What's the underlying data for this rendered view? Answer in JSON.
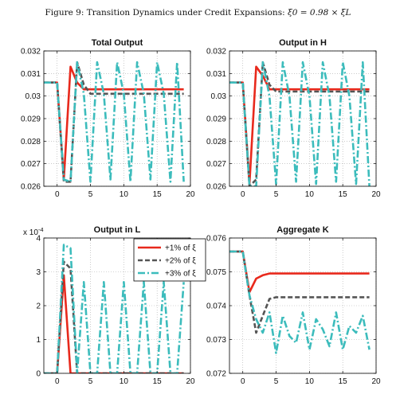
{
  "figure": {
    "title_prefix": "Figure 9: Transition Dynamics under Credit Expansions:",
    "title_math": "ξ0 = 0.98 × ξL"
  },
  "colors": {
    "s1": "#e8291c",
    "s2": "#555555",
    "s3": "#3cbcbc"
  },
  "legend": {
    "placement": "top-right of Output in L panel",
    "entries": [
      "+1% of ξ",
      "+2% of ξ",
      "+3% of ξ"
    ]
  },
  "chart_data": [
    {
      "type": "line",
      "title": "Total Output",
      "xlim": [
        -2,
        20
      ],
      "ylim": [
        0.026,
        0.032
      ],
      "xticks": [
        0,
        5,
        10,
        15,
        20
      ],
      "xtick_labels": [
        "0",
        "5",
        "10",
        "15",
        "20"
      ],
      "yticks": [
        0.026,
        0.027,
        0.028,
        0.029,
        0.03,
        0.031,
        0.032
      ],
      "ytick_labels": [
        "0.026",
        "0.027",
        "0.028",
        "0.029",
        "0.03",
        "0.031",
        "0.032"
      ],
      "grid": true,
      "series": [
        {
          "name": "+1% of ξ",
          "x": [
            -2,
            0,
            1,
            2,
            3,
            4,
            5,
            19
          ],
          "y": [
            0.0306,
            0.0306,
            0.0263,
            0.0313,
            0.0306,
            0.0303,
            0.0303,
            0.0303
          ]
        },
        {
          "name": "+2% of ξ",
          "x": [
            -2,
            0,
            1,
            2,
            3,
            4,
            5,
            6,
            19
          ],
          "y": [
            0.0306,
            0.0306,
            0.0262,
            0.0262,
            0.0315,
            0.0305,
            0.0301,
            0.0301,
            0.0301
          ]
        },
        {
          "name": "+3% of ξ",
          "x": [
            -2,
            0,
            1,
            2,
            3,
            4,
            5,
            6,
            7,
            8,
            9,
            10,
            11,
            12,
            13,
            14,
            15,
            16,
            17,
            18,
            19
          ],
          "y": [
            0.0306,
            0.0306,
            0.0263,
            0.0262,
            0.0315,
            0.0301,
            0.0262,
            0.0315,
            0.0301,
            0.0263,
            0.0315,
            0.0301,
            0.0262,
            0.0315,
            0.0301,
            0.0263,
            0.0315,
            0.0301,
            0.0262,
            0.0315,
            0.0262
          ]
        }
      ]
    },
    {
      "type": "line",
      "title": "Output in H",
      "xlim": [
        -2,
        20
      ],
      "ylim": [
        0.026,
        0.032
      ],
      "xticks": [
        0,
        5,
        10,
        15,
        20
      ],
      "xtick_labels": [
        "0",
        "5",
        "10",
        "15",
        "20"
      ],
      "yticks": [
        0.026,
        0.027,
        0.028,
        0.029,
        0.03,
        0.031,
        0.032
      ],
      "ytick_labels": [
        "0.026",
        "0.027",
        "0.028",
        "0.029",
        "0.03",
        "0.031",
        "0.032"
      ],
      "grid": true,
      "series": [
        {
          "name": "+1% of ξ",
          "x": [
            -2,
            0,
            1,
            2,
            3,
            4,
            5,
            19
          ],
          "y": [
            0.0306,
            0.0306,
            0.0261,
            0.0313,
            0.0309,
            0.0303,
            0.0303,
            0.0303
          ]
        },
        {
          "name": "+2% of ξ",
          "x": [
            -2,
            0,
            1,
            2,
            3,
            4,
            5,
            19
          ],
          "y": [
            0.0306,
            0.0306,
            0.026,
            0.0263,
            0.0315,
            0.0305,
            0.0302,
            0.0302
          ]
        },
        {
          "name": "+3% of ξ",
          "x": [
            -2,
            0,
            1,
            2,
            3,
            4,
            5,
            6,
            7,
            8,
            9,
            10,
            11,
            12,
            13,
            14,
            15,
            16,
            17,
            18,
            19
          ],
          "y": [
            0.0306,
            0.0306,
            0.026,
            0.026,
            0.0315,
            0.03,
            0.0261,
            0.0315,
            0.03,
            0.0262,
            0.0315,
            0.03,
            0.0261,
            0.0315,
            0.03,
            0.0262,
            0.0315,
            0.03,
            0.0261,
            0.0315,
            0.026
          ]
        }
      ]
    },
    {
      "type": "line",
      "title": "Output in L",
      "multiplier_label": "x 10",
      "multiplier_exp": "-4",
      "xlim": [
        -2,
        20
      ],
      "ylim": [
        0,
        4
      ],
      "xticks": [
        0,
        5,
        10,
        15,
        20
      ],
      "xtick_labels": [
        "0",
        "5",
        "10",
        "15",
        "20"
      ],
      "yticks": [
        0,
        1,
        2,
        3,
        4
      ],
      "ytick_labels": [
        "0",
        "1",
        "2",
        "3",
        "4"
      ],
      "grid": true,
      "series": [
        {
          "name": "+1% of ξ",
          "x": [
            -2,
            0,
            1,
            2,
            19
          ],
          "y": [
            0,
            0,
            2.9,
            0,
            0
          ]
        },
        {
          "name": "+2% of ξ",
          "x": [
            -2,
            0,
            1,
            2,
            3,
            19
          ],
          "y": [
            0,
            0,
            3.3,
            3.1,
            0,
            0
          ]
        },
        {
          "name": "+3% of ξ",
          "x": [
            -2,
            0,
            1,
            2,
            3,
            4,
            5,
            6,
            7,
            8,
            9,
            10,
            11,
            12,
            13,
            14,
            15,
            16,
            17,
            18,
            19
          ],
          "y": [
            0,
            0,
            3.8,
            3.7,
            0,
            2.7,
            0,
            0,
            2.7,
            0,
            0,
            2.7,
            0,
            0,
            2.7,
            0,
            0,
            2.7,
            0,
            0,
            2.7
          ]
        }
      ]
    },
    {
      "type": "line",
      "title": "Aggregate K",
      "xlim": [
        -2,
        20
      ],
      "ylim": [
        0.072,
        0.076
      ],
      "xticks": [
        0,
        5,
        10,
        15,
        20
      ],
      "xtick_labels": [
        "0",
        "5",
        "10",
        "15",
        "20"
      ],
      "yticks": [
        0.072,
        0.073,
        0.074,
        0.075,
        0.076
      ],
      "ytick_labels": [
        "0.072",
        "0.073",
        "0.074",
        "0.075",
        "0.076"
      ],
      "grid": true,
      "series": [
        {
          "name": "+1% of ξ",
          "x": [
            -2,
            0,
            1,
            2,
            3,
            4,
            5,
            19
          ],
          "y": [
            0.0756,
            0.0756,
            0.0744,
            0.0748,
            0.0749,
            0.07495,
            0.07495,
            0.07495
          ]
        },
        {
          "name": "+2% of ξ",
          "x": [
            -2,
            0,
            1,
            2,
            3,
            4,
            5,
            19
          ],
          "y": [
            0.0756,
            0.0756,
            0.0743,
            0.0732,
            0.0737,
            0.0742,
            0.07425,
            0.07425
          ]
        },
        {
          "name": "+3% of ξ",
          "x": [
            -2,
            0,
            1,
            2,
            3,
            4,
            5,
            6,
            7,
            8,
            9,
            10,
            11,
            12,
            13,
            14,
            15,
            16,
            17,
            18,
            19
          ],
          "y": [
            0.0756,
            0.0756,
            0.0743,
            0.0736,
            0.0732,
            0.0738,
            0.0726,
            0.0737,
            0.0731,
            0.0729,
            0.0738,
            0.0727,
            0.0736,
            0.0733,
            0.0728,
            0.0738,
            0.0727,
            0.0734,
            0.0732,
            0.0737,
            0.0727
          ]
        }
      ]
    }
  ]
}
